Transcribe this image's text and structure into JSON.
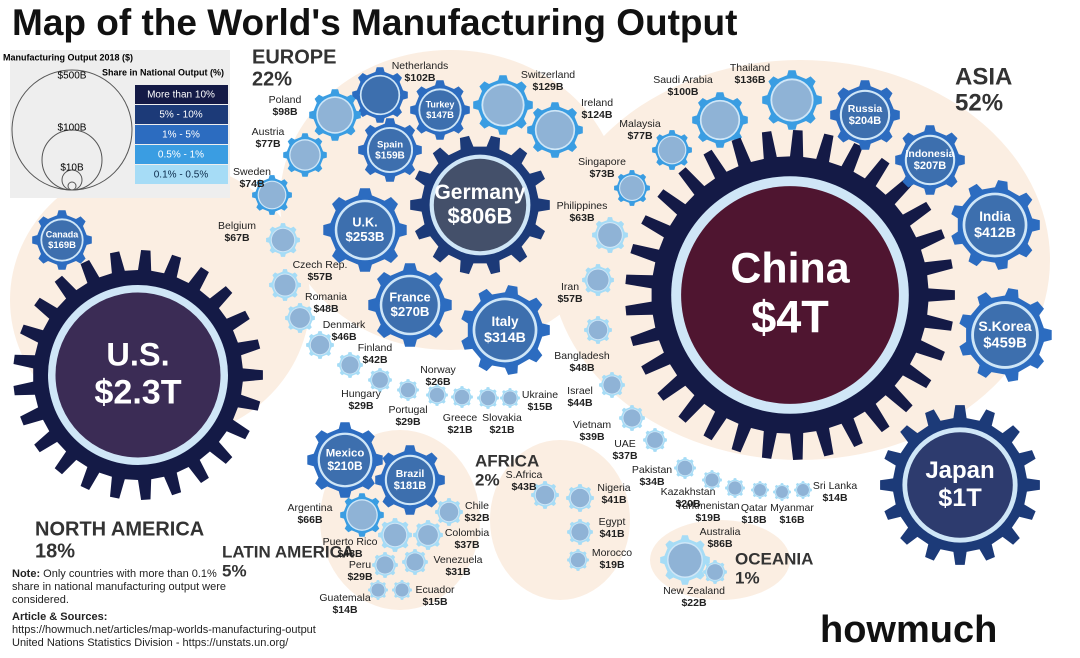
{
  "title": "Map of the World's Manufacturing Output",
  "legend": {
    "size_title": "Manufacturing Output 2018 ($)",
    "sizes": [
      "$500B",
      "$100B",
      "$10B"
    ],
    "share_title": "Share in National Output (%)",
    "shares": [
      "More than 10%",
      "5% - 10%",
      "1% - 5%",
      "0.5% - 1%",
      "0.1% - 0.5%"
    ]
  },
  "regions": [
    {
      "name": "EUROPE",
      "share": "22%"
    },
    {
      "name": "ASIA",
      "share": "52%"
    },
    {
      "name": "NORTH AMERICA",
      "share": "18%"
    },
    {
      "name": "LATIN AMERICA",
      "share": "5%"
    },
    {
      "name": "AFRICA",
      "share": "2%"
    },
    {
      "name": "OCEANIA",
      "share": "1%"
    }
  ],
  "countries": [
    {
      "name": "Canada",
      "value": "$169B"
    },
    {
      "name": "U.S.",
      "value": "$2.3T"
    },
    {
      "name": "Mexico",
      "value": "$210B"
    },
    {
      "name": "Brazil",
      "value": "$181B"
    },
    {
      "name": "Argentina",
      "value": "$66B"
    },
    {
      "name": "Chile",
      "value": "$32B"
    },
    {
      "name": "Puerto Rico",
      "value": "$48B"
    },
    {
      "name": "Colombia",
      "value": "$37B"
    },
    {
      "name": "Venezuela",
      "value": "$31B"
    },
    {
      "name": "Peru",
      "value": "$29B"
    },
    {
      "name": "Ecuador",
      "value": "$15B"
    },
    {
      "name": "Guatemala",
      "value": "$14B"
    },
    {
      "name": "Germany",
      "value": "$806B"
    },
    {
      "name": "France",
      "value": "$270B"
    },
    {
      "name": "Italy",
      "value": "$314B"
    },
    {
      "name": "U.K.",
      "value": "$253B"
    },
    {
      "name": "Spain",
      "value": "$159B"
    },
    {
      "name": "Turkey",
      "value": "$147B"
    },
    {
      "name": "Netherlands",
      "value": "$102B"
    },
    {
      "name": "Switzerland",
      "value": "$129B"
    },
    {
      "name": "Ireland",
      "value": "$124B"
    },
    {
      "name": "Poland",
      "value": "$98B"
    },
    {
      "name": "Austria",
      "value": "$77B"
    },
    {
      "name": "Sweden",
      "value": "$74B"
    },
    {
      "name": "Belgium",
      "value": "$67B"
    },
    {
      "name": "Czech Rep.",
      "value": "$57B"
    },
    {
      "name": "Romania",
      "value": "$48B"
    },
    {
      "name": "Denmark",
      "value": "$46B"
    },
    {
      "name": "Finland",
      "value": "$42B"
    },
    {
      "name": "Norway",
      "value": "$26B"
    },
    {
      "name": "Hungary",
      "value": "$29B"
    },
    {
      "name": "Portugal",
      "value": "$29B"
    },
    {
      "name": "Greece",
      "value": "$21B"
    },
    {
      "name": "Slovakia",
      "value": "$21B"
    },
    {
      "name": "Ukraine",
      "value": "$15B"
    },
    {
      "name": "Saudi Arabia",
      "value": "$100B"
    },
    {
      "name": "Thailand",
      "value": "$136B"
    },
    {
      "name": "Malaysia",
      "value": "$77B"
    },
    {
      "name": "Singapore",
      "value": "$73B"
    },
    {
      "name": "Philippines",
      "value": "$63B"
    },
    {
      "name": "Iran",
      "value": "$57B"
    },
    {
      "name": "Bangladesh",
      "value": "$48B"
    },
    {
      "name": "Israel",
      "value": "$44B"
    },
    {
      "name": "Vietnam",
      "value": "$39B"
    },
    {
      "name": "UAE",
      "value": "$37B"
    },
    {
      "name": "Pakistan",
      "value": "$34B"
    },
    {
      "name": "Kazakhstan",
      "value": "$20B"
    },
    {
      "name": "Turkmenistan",
      "value": "$19B"
    },
    {
      "name": "Qatar",
      "value": "$18B"
    },
    {
      "name": "Myanmar",
      "value": "$16B"
    },
    {
      "name": "Sri Lanka",
      "value": "$14B"
    },
    {
      "name": "China",
      "value": "$4T"
    },
    {
      "name": "Russia",
      "value": "$204B"
    },
    {
      "name": "Indonesia",
      "value": "$207B"
    },
    {
      "name": "India",
      "value": "$412B"
    },
    {
      "name": "S.Korea",
      "value": "$459B"
    },
    {
      "name": "Japan",
      "value": "$1T"
    },
    {
      "name": "Australia",
      "value": "$86B"
    },
    {
      "name": "New Zealand",
      "value": "$22B"
    },
    {
      "name": "S.Africa",
      "value": "$43B"
    },
    {
      "name": "Nigeria",
      "value": "$41B"
    },
    {
      "name": "Egypt",
      "value": "$41B"
    },
    {
      "name": "Morocco",
      "value": "$19B"
    }
  ],
  "note": {
    "label": "Note:",
    "text": "Only countries with more than 0.1% share in national manufacturing output were considered."
  },
  "sources": {
    "label": "Article & Sources:",
    "lines": [
      "https://howmuch.net/articles/map-worlds-manufacturing-output",
      "United Nations Statistics Division - https://unstats.un.org/"
    ]
  },
  "logo": "howmuch"
}
